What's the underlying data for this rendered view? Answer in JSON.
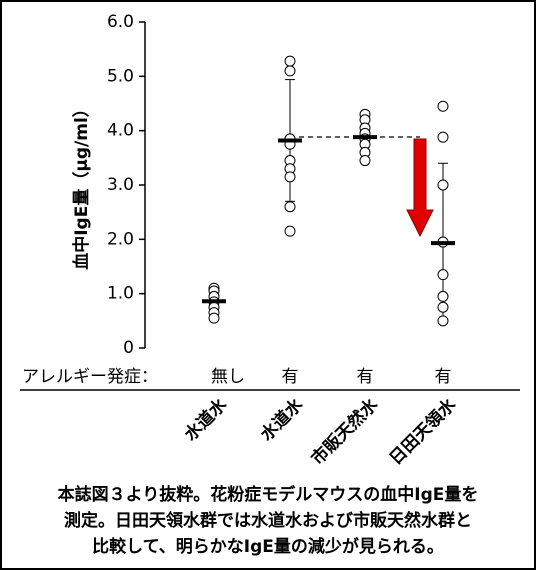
{
  "chart_data": {
    "type": "dotplot",
    "y_label": "血中IgE量（μg/ml）",
    "ylim": [
      0,
      6
    ],
    "yticks": [
      0,
      {
        "value": 1,
        "label": "1.0"
      },
      {
        "value": 2,
        "label": "2.0"
      },
      {
        "value": 3,
        "label": "3.0"
      },
      {
        "value": 4,
        "label": "4.0"
      },
      {
        "value": 5,
        "label": "5.0"
      },
      {
        "value": 6,
        "label": "6.0"
      }
    ],
    "row_label": "アレルギー発症：",
    "allergy": [
      "無し",
      "有",
      "有",
      "有"
    ],
    "categories": [
      "水道水",
      "水道水",
      "市販天然水",
      "日田天領水"
    ],
    "points": [
      [
        1.1,
        1.05,
        0.95,
        0.85,
        0.75,
        0.65,
        0.55
      ],
      [
        5.28,
        5.1,
        3.85,
        3.75,
        3.45,
        3.3,
        3.15,
        2.6,
        2.15
      ],
      [
        4.3,
        4.2,
        4.05,
        3.95,
        3.85,
        3.75,
        3.6,
        3.45
      ],
      [
        4.45,
        3.88,
        3.0,
        1.95,
        1.35,
        0.95,
        0.75,
        0.5
      ]
    ],
    "means": [
      0.86,
      3.82,
      3.88,
      1.93
    ],
    "errors": [
      0.2,
      1.12,
      0.3,
      1.47
    ]
  },
  "caption": [
    "本誌図３より抜粋。花粉症モデルマウスの血中IgE量を",
    "測定。日田天領水群では水道水および市販天然水群と",
    "比較して、明らかなIgE量の減少が見られる。"
  ]
}
